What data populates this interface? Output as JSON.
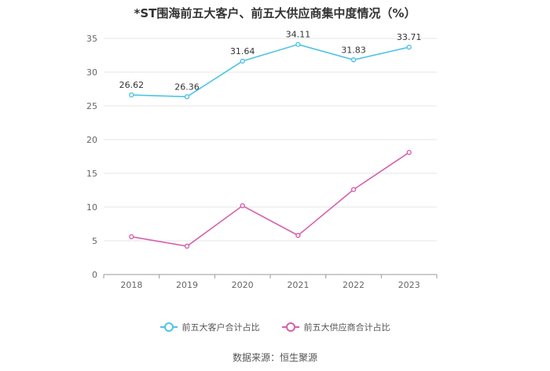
{
  "title": "*ST围海前五大客户、前五大供应商集中度情况（%）",
  "source": "数据来源：恒生聚源",
  "chart_data": {
    "type": "line",
    "categories": [
      "2018",
      "2019",
      "2020",
      "2021",
      "2022",
      "2023"
    ],
    "ylim": [
      0,
      35
    ],
    "yticks": [
      0,
      5,
      10,
      15,
      20,
      25,
      30,
      35
    ],
    "grid": true,
    "legend_position": "bottom",
    "series": [
      {
        "name": "前五大客户合计占比",
        "color": "#4fc3e8",
        "values": [
          26.62,
          26.36,
          31.64,
          34.11,
          31.83,
          33.71
        ],
        "labels": [
          "26.62",
          "26.36",
          "31.64",
          "34.11",
          "31.83",
          "33.71"
        ]
      },
      {
        "name": "前五大供应商合计占比",
        "color": "#d660ad",
        "values": [
          5.6,
          4.2,
          10.2,
          5.8,
          12.6,
          18.1
        ],
        "labels": []
      }
    ]
  }
}
